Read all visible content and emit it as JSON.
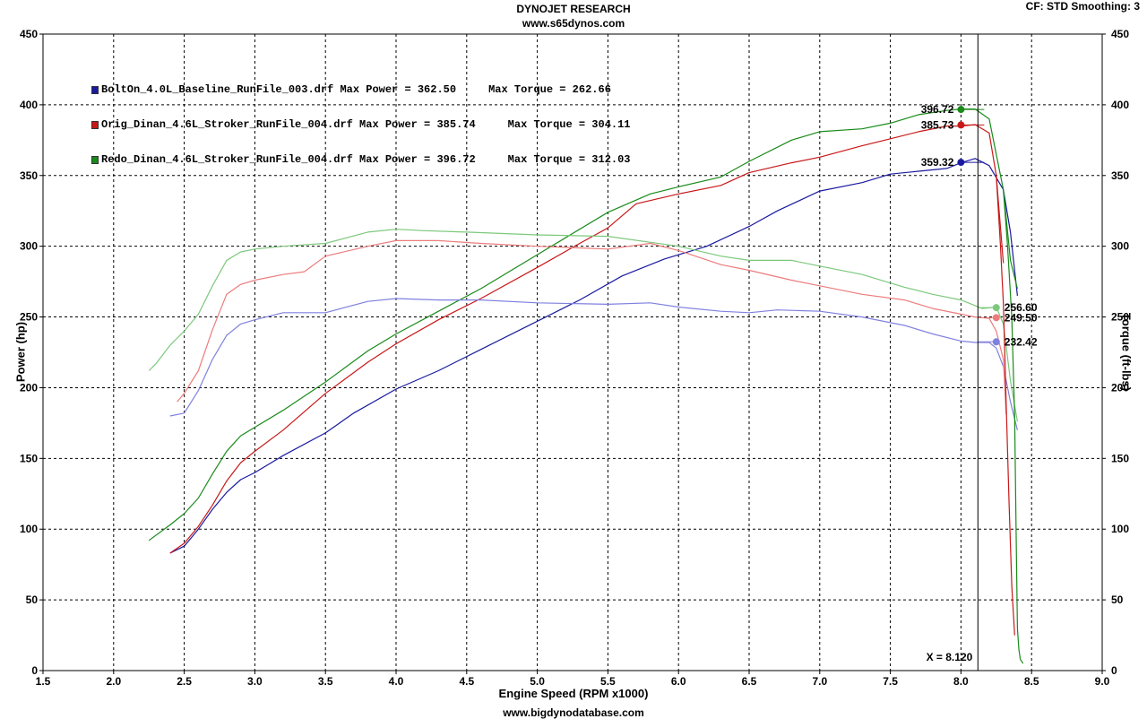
{
  "header": {
    "title": "DYNOJET RESEARCH",
    "subtitle": "www.s65dynos.com",
    "settings": "CF: STD  Smoothing: 3",
    "footer": "www.bigdynodatabase.com"
  },
  "chart_data": {
    "type": "line",
    "xlabel": "Engine Speed (RPM x1000)",
    "ylabel_left": "Power (hp)",
    "ylabel_right": "Torque (ft-lbs)",
    "xlim": [
      1.5,
      9.0
    ],
    "ylim": [
      0,
      450
    ],
    "x_ticks": [
      "1.5",
      "2.0",
      "2.5",
      "3.0",
      "3.5",
      "4.0",
      "4.5",
      "5.0",
      "5.5",
      "6.0",
      "6.5",
      "7.0",
      "7.5",
      "8.0",
      "8.5",
      "9.0"
    ],
    "y_ticks": [
      "0",
      "50",
      "100",
      "150",
      "200",
      "250",
      "300",
      "350",
      "400",
      "450"
    ],
    "grid": true,
    "cursor": {
      "x": 8.12,
      "label": "X = 8.120"
    },
    "legend_position": "top-left",
    "legend": [
      {
        "text": "BoltOn_4.0L_Baseline_RunFile_003.drf Max Power = 362.50     Max Torque = 262.66",
        "color": "#1a1aa0"
      },
      {
        "text": "Orig_Dinan_4.6L_Stroker_RunFile_004.drf Max Power = 385.74     Max Torque = 304.11",
        "color": "#c81818"
      },
      {
        "text": "Redo_Dinan_4.6L_Stroker_RunFile_004.drf Max Power = 396.72     Max Torque = 312.03",
        "color": "#1a8a1a"
      }
    ],
    "series": [
      {
        "name": "BoltOn_4.0L_Baseline_RunFile_003.drf",
        "kind": "power",
        "color": "#1a1aa0",
        "x": [
          2.4,
          2.5,
          2.6,
          2.7,
          2.8,
          2.9,
          3.0,
          3.2,
          3.5,
          3.7,
          4.0,
          4.3,
          4.6,
          5.0,
          5.3,
          5.6,
          5.9,
          6.2,
          6.5,
          6.7,
          7.0,
          7.3,
          7.5,
          7.7,
          7.9,
          8.0,
          8.1,
          8.2,
          8.3,
          8.35,
          8.4
        ],
        "y": [
          83,
          88,
          100,
          114,
          126,
          135,
          140,
          152,
          168,
          182,
          199,
          212,
          227,
          247,
          262,
          279,
          291,
          300,
          314,
          325,
          339,
          345,
          351,
          353,
          355,
          359,
          362,
          357,
          340,
          310,
          265
        ],
        "marker": {
          "x": 8.0,
          "y": 359.32,
          "label": "359.32"
        }
      },
      {
        "name": "Orig_Dinan_4.6L_Stroker_RunFile_004.drf",
        "kind": "power",
        "color": "#c81818",
        "x": [
          2.4,
          2.5,
          2.6,
          2.7,
          2.8,
          2.9,
          3.0,
          3.2,
          3.5,
          3.8,
          4.0,
          4.3,
          4.6,
          5.0,
          5.3,
          5.5,
          5.7,
          6.0,
          6.3,
          6.5,
          6.8,
          7.0,
          7.3,
          7.5,
          7.7,
          7.9,
          8.0,
          8.1,
          8.2,
          8.25,
          8.3
        ],
        "y": [
          83,
          90,
          102,
          117,
          134,
          147,
          155,
          170,
          196,
          218,
          231,
          248,
          263,
          285,
          302,
          313,
          330,
          337,
          343,
          352,
          359,
          363,
          371,
          376,
          381,
          385,
          385,
          386,
          380,
          350,
          288
        ],
        "marker": {
          "x": 8.0,
          "y": 385.73,
          "label": "385.73"
        }
      },
      {
        "name": "Redo_Dinan_4.6L_Stroker_RunFile_004.drf",
        "kind": "power",
        "color": "#1a8a1a",
        "x": [
          2.25,
          2.4,
          2.5,
          2.6,
          2.7,
          2.8,
          2.9,
          3.0,
          3.2,
          3.5,
          3.8,
          4.0,
          4.3,
          4.6,
          5.0,
          5.3,
          5.5,
          5.8,
          6.0,
          6.3,
          6.5,
          6.8,
          7.0,
          7.3,
          7.5,
          7.7,
          7.9,
          8.0,
          8.1,
          8.2,
          8.3,
          8.35,
          8.4
        ],
        "y": [
          92,
          103,
          111,
          122,
          139,
          155,
          166,
          172,
          184,
          204,
          226,
          238,
          254,
          270,
          294,
          312,
          324,
          337,
          342,
          349,
          360,
          375,
          381,
          383,
          387,
          393,
          396,
          397,
          397,
          390,
          340,
          290,
          270
        ],
        "marker": {
          "x": 8.0,
          "y": 396.72,
          "label": "396.72"
        }
      },
      {
        "name": "BoltOn_4.0L_Baseline_RunFile_003.drf",
        "kind": "torque",
        "color": "#8080e0",
        "x": [
          2.4,
          2.5,
          2.6,
          2.7,
          2.8,
          2.9,
          3.0,
          3.2,
          3.5,
          3.8,
          4.0,
          4.3,
          4.6,
          5.0,
          5.5,
          5.8,
          6.0,
          6.3,
          6.5,
          6.7,
          7.0,
          7.3,
          7.6,
          7.8,
          8.0,
          8.1,
          8.2,
          8.25,
          8.3,
          8.35,
          8.4
        ],
        "y": [
          180,
          182,
          198,
          220,
          237,
          245,
          248,
          253,
          253,
          261,
          263,
          262,
          262,
          260,
          259,
          260,
          257,
          254,
          253,
          255,
          254,
          250,
          244,
          238,
          233,
          232,
          232,
          228,
          215,
          190,
          170
        ],
        "marker": {
          "x": 8.25,
          "y": 232.42,
          "label": "232.42"
        }
      },
      {
        "name": "Orig_Dinan_4.6L_Stroker_RunFile_004.drf",
        "kind": "torque",
        "color": "#ec7c7c",
        "x": [
          2.45,
          2.5,
          2.6,
          2.7,
          2.8,
          2.9,
          3.0,
          3.2,
          3.35,
          3.5,
          3.8,
          4.0,
          4.3,
          4.6,
          5.0,
          5.5,
          5.8,
          6.0,
          6.3,
          6.5,
          6.8,
          7.0,
          7.3,
          7.6,
          7.8,
          8.0,
          8.1,
          8.2,
          8.25,
          8.3,
          8.32
        ],
        "y": [
          190,
          196,
          212,
          241,
          266,
          273,
          276,
          280,
          282,
          293,
          300,
          304,
          304,
          302,
          300,
          298,
          302,
          297,
          287,
          283,
          276,
          272,
          266,
          262,
          256,
          252,
          250,
          249,
          240,
          220,
          181
        ],
        "marker": {
          "x": 8.25,
          "y": 249.5,
          "label": "249.50"
        }
      },
      {
        "name": "Redo_Dinan_4.6L_Stroker_RunFile_004.drf",
        "kind": "torque",
        "color": "#7cc87c",
        "x": [
          2.25,
          2.3,
          2.4,
          2.5,
          2.6,
          2.7,
          2.8,
          2.9,
          3.0,
          3.2,
          3.5,
          3.8,
          4.0,
          4.2,
          4.5,
          5.0,
          5.5,
          6.0,
          6.3,
          6.5,
          6.8,
          7.0,
          7.3,
          7.6,
          7.8,
          8.0,
          8.15,
          8.25,
          8.3,
          8.35,
          8.4
        ],
        "y": [
          212,
          217,
          230,
          240,
          252,
          272,
          290,
          296,
          298,
          300,
          302,
          310,
          312,
          311,
          310,
          308,
          307,
          300,
          293,
          290,
          290,
          286,
          280,
          271,
          266,
          262,
          256,
          257,
          245,
          205,
          176
        ],
        "marker": {
          "x": 8.25,
          "y": 256.6,
          "label": "256.60"
        }
      },
      {
        "name": "Redo_Dinan_4.6L_Stroker_RunFile_004.drf",
        "kind": "drop",
        "color": "#1a8a1a",
        "x": [
          8.3,
          8.33,
          8.36,
          8.38,
          8.39,
          8.4,
          8.41,
          8.42,
          8.44
        ],
        "y": [
          340,
          300,
          250,
          180,
          100,
          30,
          15,
          8,
          5
        ]
      },
      {
        "name": "Orig_Dinan_4.6L_Stroker_RunFile_004.drf",
        "kind": "drop",
        "color": "#c81818",
        "x": [
          8.25,
          8.28,
          8.3,
          8.32,
          8.34,
          8.36,
          8.38
        ],
        "y": [
          350,
          300,
          260,
          190,
          120,
          60,
          25
        ]
      }
    ]
  }
}
